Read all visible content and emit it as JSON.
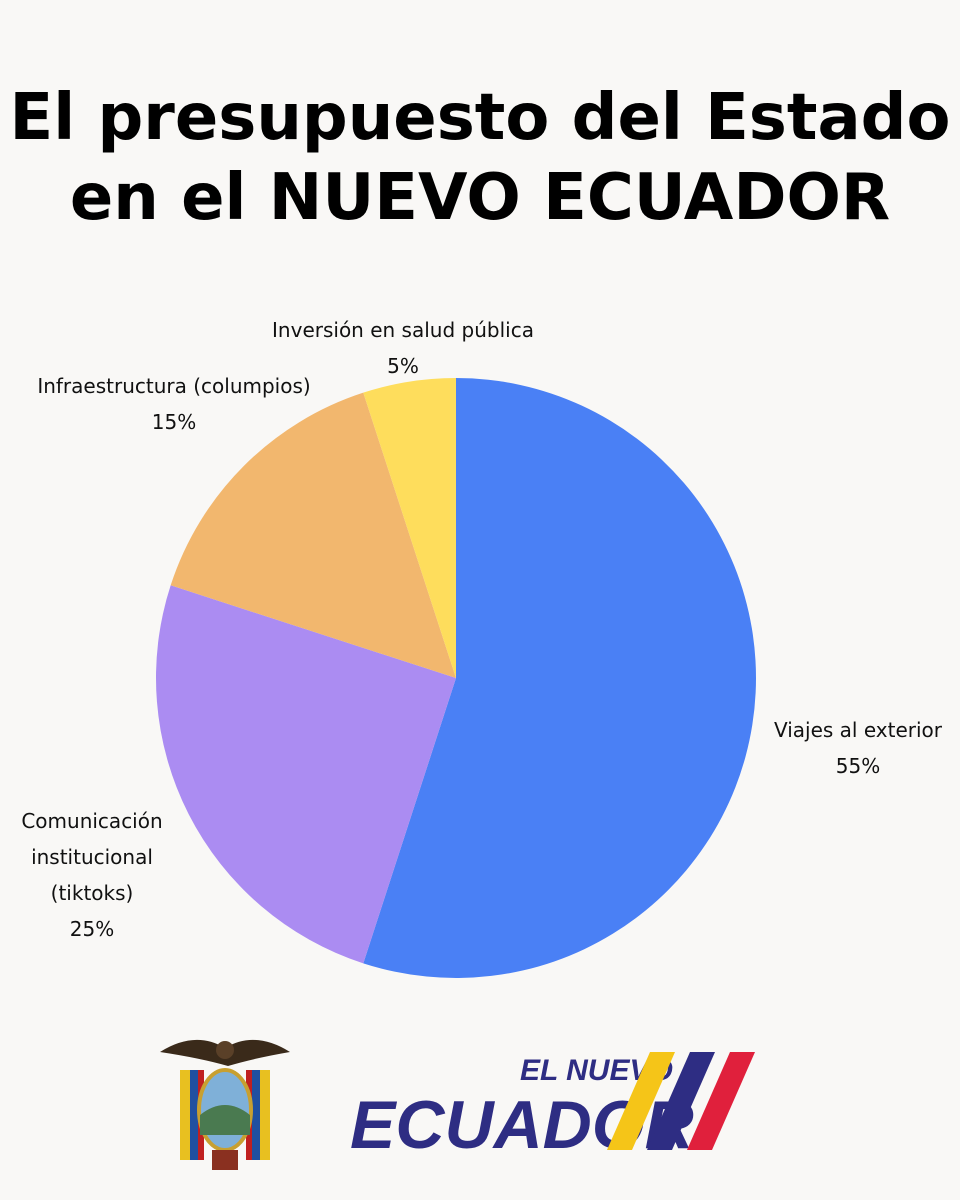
{
  "chart_data": {
    "type": "pie",
    "title": [
      "El presupuesto del Estado",
      "en el NUEVO ECUADOR"
    ],
    "categories": [
      "Viajes al exterior",
      "Comunicación institucional (tiktoks)",
      "Infraestructura (columpios)",
      "Inversión en salud pública"
    ],
    "values": [
      55,
      25,
      15,
      5
    ],
    "value_labels": [
      "55%",
      "25%",
      "15%",
      "5%"
    ],
    "colors": [
      "#4a80f5",
      "#ab8cf2",
      "#f2b76e",
      "#fedd5c"
    ]
  },
  "logo": {
    "top": "EL NUEVO",
    "bottom": "ECUADOR"
  }
}
